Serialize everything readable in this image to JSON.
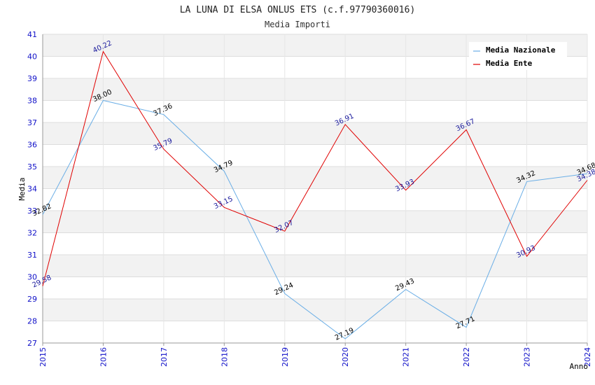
{
  "chart_data": {
    "type": "line",
    "title": "LA LUNA DI ELSA ONLUS ETS (c.f.97790360016)",
    "subtitle": "Media Importi",
    "xlabel": "Anno",
    "ylabel": "Media",
    "x": [
      "2015",
      "2016",
      "2017",
      "2018",
      "2019",
      "2020",
      "2021",
      "2022",
      "2023",
      "2024"
    ],
    "ylim": [
      27,
      41
    ],
    "yticks": [
      "27",
      "28",
      "29",
      "30",
      "31",
      "32",
      "33",
      "34",
      "35",
      "36",
      "37",
      "38",
      "39",
      "40",
      "41"
    ],
    "grid": true,
    "legend_position": "top-right",
    "series": [
      {
        "name": "Media Nazionale",
        "color": "#6aaee6",
        "label_color": "#000000",
        "values": [
          32.82,
          38.0,
          37.36,
          34.79,
          29.24,
          27.19,
          29.43,
          27.71,
          34.32,
          34.68
        ],
        "labels": [
          "32.82",
          "38.00",
          "37.36",
          "34.79",
          "29.24",
          "27.19",
          "29.43",
          "27.71",
          "34.32",
          "34.68"
        ]
      },
      {
        "name": "Media Ente",
        "color": "#e00000",
        "label_color": "#1a1a9c",
        "values": [
          29.58,
          40.22,
          35.79,
          33.15,
          32.07,
          36.91,
          33.93,
          36.67,
          30.93,
          34.38
        ],
        "labels": [
          "29.58",
          "40.22",
          "35.79",
          "33.15",
          "32.07",
          "36.91",
          "33.93",
          "36.67",
          "30.93",
          "34.38"
        ]
      }
    ]
  }
}
